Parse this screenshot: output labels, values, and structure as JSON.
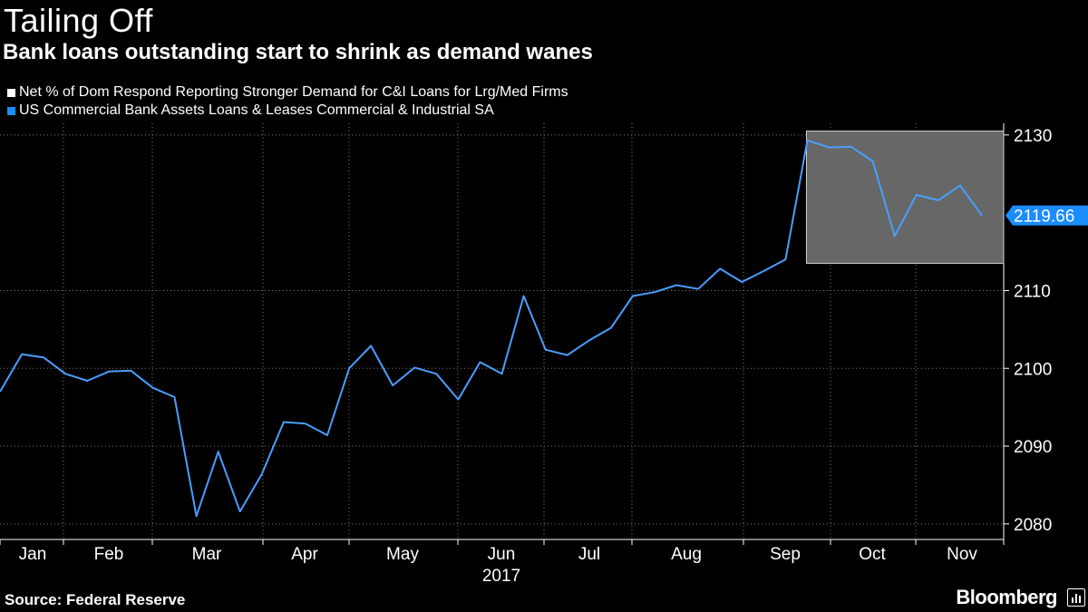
{
  "header": {
    "title": "Tailing Off",
    "subtitle": "Bank loans outstanding start to shrink as demand wanes"
  },
  "legend": [
    {
      "label": "Net % of Dom Respond Reporting Stronger Demand for C&I Loans for Lrg/Med Firms",
      "color": "#ffffff"
    },
    {
      "label": "US Commercial Bank Assets Loans & Leases Commercial & Industrial SA",
      "color": "#1a8cff"
    }
  ],
  "footer": {
    "source": "Source: Federal Reserve",
    "brand": "Bloomberg",
    "brand_icon": "bloomberg-terminal-icon"
  },
  "chart_data": {
    "type": "line",
    "year_label": "2017",
    "month_labels": [
      "Jan",
      "Feb",
      "Mar",
      "Apr",
      "May",
      "Jun",
      "Jul",
      "Aug",
      "Sep",
      "Oct",
      "Nov"
    ],
    "y_ticks": [
      2080,
      2090,
      2100,
      2110,
      2130
    ],
    "ylim": [
      2078,
      2131.5
    ],
    "last_value_label": "2119.66",
    "highlight_range": {
      "from_point": 37,
      "to_point": 46,
      "y_low": 2113.5,
      "y_high": 2130.5
    },
    "series": [
      {
        "name": "US Commercial Bank Assets Loans & Leases Commercial & Industrial SA",
        "color": "#4a9eff",
        "values": [
          2097.0,
          2101.8,
          2101.4,
          2099.3,
          2098.4,
          2099.6,
          2099.7,
          2097.5,
          2096.3,
          2081.0,
          2089.3,
          2081.6,
          2086.4,
          2093.1,
          2092.9,
          2091.4,
          2100.0,
          2102.9,
          2097.8,
          2100.1,
          2099.3,
          2096.0,
          2100.8,
          2099.3,
          2109.3,
          2102.4,
          2101.7,
          2103.6,
          2105.2,
          2109.3,
          2109.8,
          2110.7,
          2110.2,
          2112.8,
          2111.1,
          2112.5,
          2114.0,
          2129.3,
          2128.4,
          2128.5,
          2126.6,
          2117.0,
          2122.3,
          2121.6,
          2123.5,
          2119.66
        ]
      }
    ]
  }
}
